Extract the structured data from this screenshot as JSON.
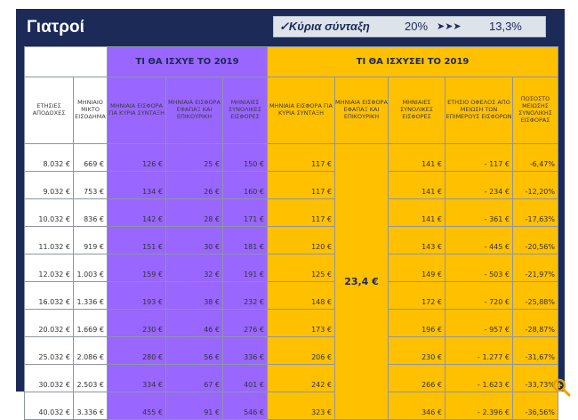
{
  "title": "Γιατροί",
  "summary": {
    "label": "✓Κύρια σύνταξη",
    "value1": "20%",
    "arrows": "➤➤➤",
    "value2": "13,3%"
  },
  "groups": {
    "before": "ΤΙ ΘΑ ΙΣΧΥΕ ΤΟ 2019",
    "after": "ΤΙ ΘΑ ΙΣΧΥΣΕΙ ΤΟ 2019"
  },
  "headers": [
    "ΕΤΗΣΙΕΣ ΑΠΟΔΟΧΕΣ",
    "ΜΗΝΙΑΙΟ ΜΙΚΤΟ ΕΙΣΟΔΗΜΑ",
    "ΜΗΝΙΑΙΑ ΕΙΣΦΟΡΑ ΓΙΑ ΚΥΡΙΑ ΣΥΝΤΑΞΗ",
    "ΜΗΝΙΑΙΑ ΕΙΣΦΟΡΑ ΕΦΑΠΑΞ ΚΑΙ ΕΠΙΚΟΥΡΙΚΗ",
    "ΜΗΝΙΑΙΕΣ ΣΥΝΟΛΙΚΕΣ ΕΙΣΦΟΡΕΣ",
    "ΜΗΝΙΑΙΑ ΕΙΣΦΟΡΑ ΓΙΑ ΚΥΡΙΑ ΣΥΝΤΑΞΗ",
    "ΜΗΝΙΑΙΑ ΕΙΣΦΟΡΑ ΕΦΑΠΑΞ ΚΑΙ ΕΠΙΚΟΥΡΙΚΗ",
    "ΜΗΝΙΑΙΕΣ ΣΥΝΟΛΙΚΕΣ ΕΙΣΦΟΡΕΣ",
    "ΕΤΗΣΙΟ ΟΦΕΛΟΣ ΑΠΟ ΜΕΙΩΣΗ ΤΩΝ ΕΠΙΜΕΡΟΥΣ ΕΙΣΦΟΡΩΝ",
    "ΠΟΣΟΣΤΟ ΜΕΙΩΣΗΣ ΣΥΝΟΛΙΚΗΣ ΕΙΣΦΟΡΑΣ"
  ],
  "merged_value": "23,4 €",
  "rows": [
    [
      "8.032 €",
      "669 €",
      "126 €",
      "25 €",
      "150 €",
      "117 €",
      "141 €",
      "- 117 €",
      "-6,47%"
    ],
    [
      "9.032 €",
      "753 €",
      "134 €",
      "26 €",
      "160 €",
      "117 €",
      "141 €",
      "- 234 €",
      "-12,20%"
    ],
    [
      "10.032 €",
      "836 €",
      "142 €",
      "28 €",
      "171 €",
      "117 €",
      "141 €",
      "- 361 €",
      "-17,63%"
    ],
    [
      "11.032 €",
      "919 €",
      "151 €",
      "30 €",
      "181 €",
      "120 €",
      "143 €",
      "- 445 €",
      "-20,56%"
    ],
    [
      "12.032 €",
      "1.003 €",
      "159 €",
      "32 €",
      "191 €",
      "125 €",
      "149 €",
      "- 503 €",
      "-21,97%"
    ],
    [
      "16.032 €",
      "1.336 €",
      "193 €",
      "38 €",
      "232 €",
      "148 €",
      "172 €",
      "- 720 €",
      "-25,88%"
    ],
    [
      "20.032 €",
      "1.669 €",
      "230 €",
      "46 €",
      "276 €",
      "173 €",
      "196 €",
      "- 957 €",
      "-28,87%"
    ],
    [
      "25.032 €",
      "2.086 €",
      "280 €",
      "56 €",
      "336 €",
      "206 €",
      "230 €",
      "- 1.277 €",
      "-31,67%"
    ],
    [
      "30.032 €",
      "2.503 €",
      "334 €",
      "67 €",
      "401 €",
      "242 €",
      "266 €",
      "- 1.623 €",
      "-33,73%"
    ],
    [
      "40.032 €",
      "3.336 €",
      "455 €",
      "91 €",
      "546 €",
      "323 €",
      "346 €",
      "- 2.396 €",
      "-36,56%"
    ]
  ],
  "colors": {
    "frame": "#1b2a57",
    "purple": "#9966ff",
    "orange": "#ffc000"
  },
  "icons": {
    "zoom": "zoom-in-icon"
  }
}
